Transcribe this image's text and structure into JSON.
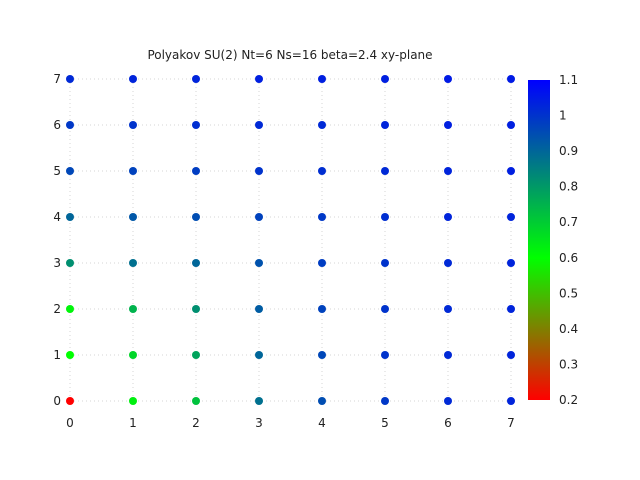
{
  "chart_data": {
    "type": "scatter",
    "title": "Polyakov SU(2) Nt=6 Ns=16 beta=2.4 xy-plane",
    "xlabel": "",
    "ylabel": "",
    "xlim": [
      0,
      7
    ],
    "ylim": [
      0,
      7
    ],
    "x_ticks": [
      0,
      1,
      2,
      3,
      4,
      5,
      6,
      7
    ],
    "y_ticks": [
      0,
      1,
      2,
      3,
      4,
      5,
      6,
      7
    ],
    "grid": true,
    "colorscale": {
      "min": 0.2,
      "max": 1.1,
      "ticks": [
        0.2,
        0.3,
        0.4,
        0.5,
        0.6,
        0.7,
        0.8,
        0.9,
        1,
        1.1
      ],
      "stops": [
        {
          "value": 0.2,
          "color": "#ff0000"
        },
        {
          "value": 0.6,
          "color": "#00ff00"
        },
        {
          "value": 1.1,
          "color": "#0000ff"
        }
      ]
    },
    "grid_values": [
      [
        0.2,
        0.63,
        0.72,
        0.88,
        0.95,
        0.99,
        1.02,
        1.03
      ],
      [
        0.6,
        0.68,
        0.78,
        0.9,
        0.96,
        1.0,
        1.02,
        1.03
      ],
      [
        0.62,
        0.75,
        0.82,
        0.92,
        0.97,
        1.0,
        1.02,
        1.03
      ],
      [
        0.82,
        0.88,
        0.9,
        0.94,
        0.98,
        1.0,
        1.02,
        1.03
      ],
      [
        0.9,
        0.93,
        0.95,
        0.97,
        0.99,
        1.01,
        1.03,
        1.03
      ],
      [
        0.96,
        0.97,
        0.98,
        1.0,
        1.01,
        1.02,
        1.03,
        1.04
      ],
      [
        0.99,
        1.0,
        1.01,
        1.02,
        1.02,
        1.03,
        1.04,
        1.04
      ],
      [
        1.02,
        1.03,
        1.03,
        1.04,
        1.04,
        1.04,
        1.05,
        1.05
      ]
    ]
  }
}
